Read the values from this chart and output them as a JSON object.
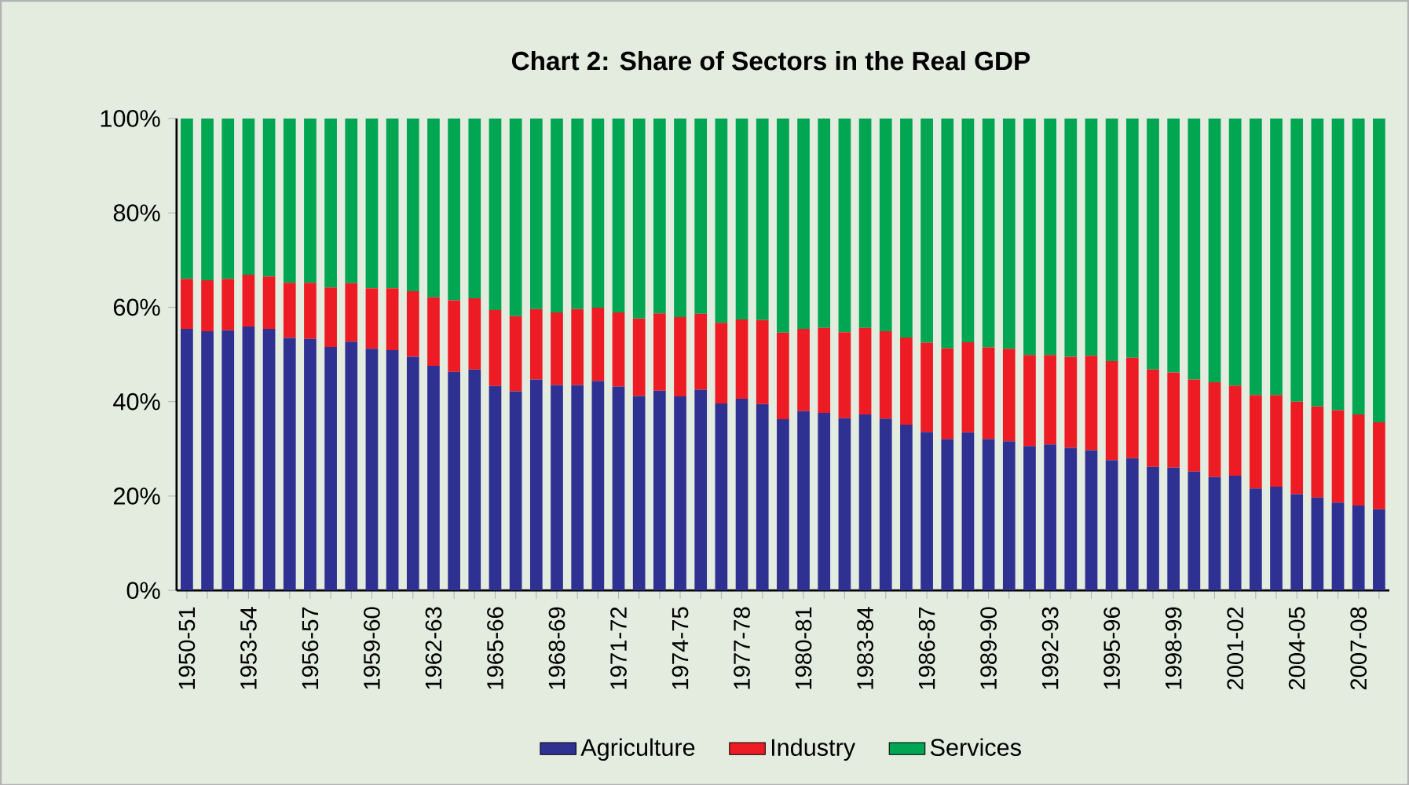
{
  "chart_data": {
    "type": "bar",
    "title": "Chart 2: Share of Sectors in the Real GDP",
    "stacked": true,
    "legend": "bottom",
    "categories": [
      "1950-51",
      null,
      null,
      "1953-54",
      null,
      null,
      "1956-57",
      null,
      null,
      "1959-60",
      null,
      null,
      "1962-63",
      null,
      null,
      "1965-66",
      null,
      null,
      "1968-69",
      null,
      null,
      "1971-72",
      null,
      null,
      "1974-75",
      null,
      null,
      "1977-78",
      null,
      null,
      "1980-81",
      null,
      null,
      "1983-84",
      null,
      null,
      "1986-87",
      null,
      null,
      "1989-90",
      null,
      null,
      "1992-93",
      null,
      null,
      "1995-96",
      null,
      null,
      "1998-99",
      null,
      null,
      "2001-02",
      null,
      null,
      "2004-05",
      null,
      null,
      "2007-08",
      null
    ],
    "ylim": [
      0,
      100
    ],
    "yticks": [
      {
        "value": 0,
        "label": "0%"
      },
      {
        "value": 20,
        "label": "20%"
      },
      {
        "value": 40,
        "label": "40%"
      },
      {
        "value": 60,
        "label": "60%"
      },
      {
        "value": 80,
        "label": "80%"
      },
      {
        "value": 100,
        "label": "100%"
      }
    ],
    "series": [
      {
        "name": "Agriculture",
        "color": "#2e3192",
        "values": [
          55.4,
          54.9,
          55.1,
          55.9,
          55.4,
          53.5,
          53.3,
          51.6,
          52.7,
          51.2,
          50.9,
          49.5,
          47.6,
          46.3,
          46.8,
          43.3,
          42.2,
          44.7,
          43.5,
          43.5,
          44.4,
          43.2,
          41.2,
          42.3,
          41.1,
          42.5,
          39.6,
          40.6,
          39.5,
          36.3,
          38.0,
          37.6,
          36.5,
          37.3,
          36.4,
          35.1,
          33.6,
          32.1,
          33.5,
          32.1,
          31.6,
          30.6,
          30.9,
          30.2,
          29.7,
          27.6,
          28.0,
          26.2,
          26.0,
          25.2,
          24.0,
          24.3,
          21.6,
          22.0,
          20.4,
          19.7,
          18.6,
          18.0,
          17.2
        ]
      },
      {
        "name": "Industry",
        "color": "#ed1c24",
        "values": [
          10.6,
          10.8,
          10.9,
          11.0,
          11.1,
          11.7,
          11.9,
          12.6,
          12.4,
          12.8,
          13.1,
          13.9,
          14.5,
          15.2,
          15.1,
          16.1,
          15.9,
          14.9,
          15.4,
          16.1,
          15.5,
          15.7,
          16.4,
          16.4,
          16.8,
          16.1,
          17.1,
          16.8,
          17.8,
          18.3,
          17.4,
          18.0,
          18.2,
          18.3,
          18.5,
          18.5,
          18.9,
          19.2,
          19.1,
          19.4,
          19.6,
          19.3,
          19.0,
          19.3,
          20.0,
          21.0,
          21.3,
          20.6,
          20.2,
          19.5,
          20.1,
          19.1,
          19.8,
          19.4,
          19.6,
          19.3,
          19.6,
          19.3,
          18.4
        ]
      },
      {
        "name": "Services",
        "color": "#00a651",
        "values": [
          34.0,
          34.3,
          34.0,
          33.1,
          33.5,
          34.8,
          34.8,
          35.8,
          34.9,
          36.0,
          36.0,
          36.6,
          37.9,
          38.5,
          38.1,
          40.6,
          41.9,
          40.4,
          41.1,
          40.4,
          40.1,
          41.1,
          42.4,
          41.3,
          42.1,
          41.4,
          43.3,
          42.6,
          42.7,
          45.4,
          44.6,
          44.4,
          45.3,
          44.4,
          45.1,
          46.4,
          47.5,
          48.7,
          47.4,
          48.5,
          48.8,
          50.1,
          50.1,
          50.5,
          50.3,
          51.4,
          50.7,
          53.2,
          53.8,
          55.3,
          55.9,
          56.6,
          58.6,
          58.6,
          60.0,
          61.0,
          61.8,
          62.7,
          64.4
        ]
      }
    ]
  }
}
